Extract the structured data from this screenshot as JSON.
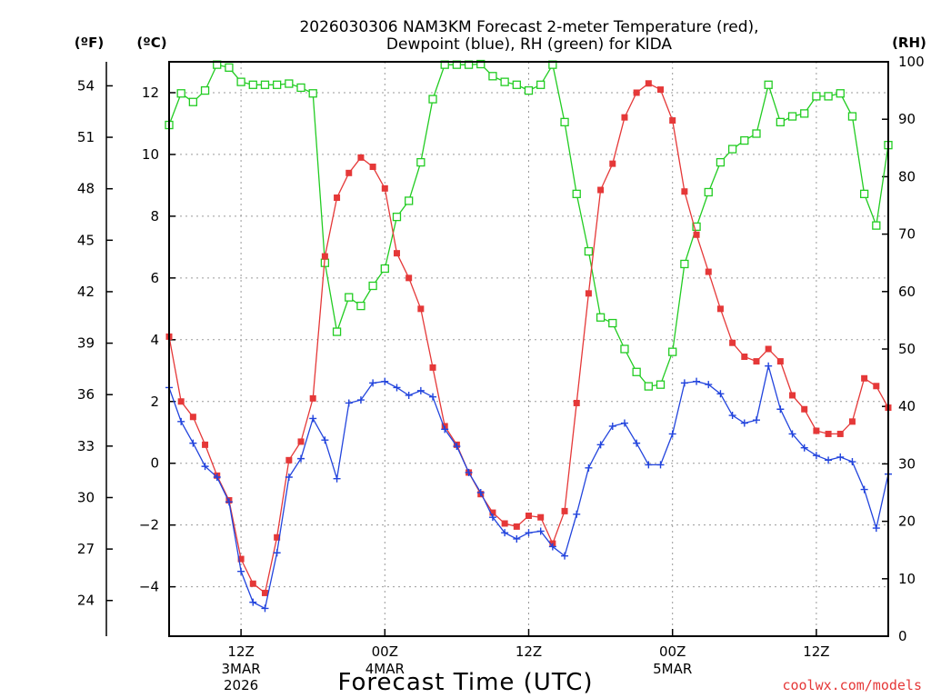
{
  "chart_data": {
    "type": "line",
    "title": [
      "2026030306 NAM3KM Forecast 2-meter Temperature (red),",
      "Dewpoint (blue), RH (green) for KIDA"
    ],
    "xlabel": "Forecast Time (UTC)",
    "credit": "coolwx.com/models",
    "left_axis_f": {
      "label": "(ºF)",
      "ticks": [
        "24",
        "27",
        "30",
        "33",
        "36",
        "39",
        "42",
        "45",
        "48",
        "51",
        "54"
      ],
      "tick_values_c": [
        -4.444,
        -2.778,
        -1.111,
        0.556,
        2.222,
        3.889,
        5.556,
        7.222,
        8.889,
        10.556,
        12.222
      ]
    },
    "left_axis_c": {
      "label": "(ºC)",
      "ticks": [
        "-4",
        "-2",
        "0",
        "2",
        "4",
        "6",
        "8",
        "10",
        "12"
      ],
      "tick_values": [
        -4,
        -2,
        0,
        2,
        4,
        6,
        8,
        10,
        12
      ],
      "ylim": [
        -5.6,
        13.0
      ]
    },
    "right_axis_rh": {
      "label": "(RH)",
      "ticks": [
        "0",
        "10",
        "20",
        "30",
        "40",
        "50",
        "60",
        "70",
        "80",
        "90",
        "100"
      ],
      "tick_values": [
        0,
        10,
        20,
        30,
        40,
        50,
        60,
        70,
        80,
        90,
        100
      ],
      "ylim": [
        0,
        100
      ]
    },
    "x_axis": {
      "xlim_hours": [
        0,
        60
      ],
      "ticks": [
        {
          "hour": 6,
          "label": "12Z",
          "sub": [
            "3MAR",
            "2026"
          ]
        },
        {
          "hour": 18,
          "label": "00Z",
          "sub": [
            "4MAR"
          ]
        },
        {
          "hour": 30,
          "label": "12Z",
          "sub": []
        },
        {
          "hour": 42,
          "label": "00Z",
          "sub": [
            "5MAR"
          ]
        },
        {
          "hour": 54,
          "label": "12Z",
          "sub": []
        }
      ]
    },
    "grid": true,
    "series": [
      {
        "name": "Temperature",
        "units": "C",
        "color": "#e53838",
        "marker": "filled-square",
        "axis": "celsius",
        "x": [
          0,
          1,
          2,
          3,
          4,
          5,
          6,
          7,
          8,
          9,
          10,
          11,
          12,
          13,
          14,
          15,
          16,
          17,
          18,
          19,
          20,
          21,
          22,
          23,
          24,
          25,
          26,
          27,
          28,
          29,
          30,
          31,
          32,
          33,
          34,
          35,
          36,
          37,
          38,
          39,
          40,
          41,
          42,
          43,
          44,
          45,
          46,
          47,
          48,
          49,
          50,
          51,
          52,
          53,
          54,
          55,
          56,
          57,
          58,
          59,
          60
        ],
        "values": [
          4.1,
          2.0,
          1.5,
          0.6,
          -0.4,
          -1.2,
          -3.1,
          -3.9,
          -4.2,
          -2.4,
          0.1,
          0.7,
          2.1,
          6.7,
          8.6,
          9.4,
          9.9,
          9.6,
          8.9,
          6.8,
          6.0,
          5.0,
          3.1,
          1.2,
          0.6,
          -0.3,
          -1.0,
          -1.6,
          -1.95,
          -2.05,
          -1.7,
          -1.75,
          -2.6,
          -1.55,
          1.95,
          5.5,
          8.85,
          9.7,
          11.2,
          12.0,
          12.3,
          12.1,
          11.1,
          8.8,
          7.4,
          6.2,
          5.0,
          3.9,
          3.45,
          3.3,
          3.7,
          3.3,
          2.2,
          1.75,
          1.05,
          0.95,
          0.95,
          1.35,
          2.75,
          2.5,
          1.8
        ]
      },
      {
        "name": "Dewpoint",
        "units": "C",
        "color": "#2244dd",
        "marker": "plus",
        "axis": "celsius",
        "x": [
          0,
          1,
          2,
          3,
          4,
          5,
          6,
          7,
          8,
          9,
          10,
          11,
          12,
          13,
          14,
          15,
          16,
          17,
          18,
          19,
          20,
          21,
          22,
          23,
          24,
          25,
          26,
          27,
          28,
          29,
          30,
          31,
          32,
          33,
          34,
          35,
          36,
          37,
          38,
          39,
          40,
          41,
          42,
          43,
          44,
          45,
          46,
          47,
          48,
          49,
          50,
          51,
          52,
          53,
          54,
          55,
          56,
          57,
          58,
          59,
          60
        ],
        "values": [
          2.45,
          1.35,
          0.65,
          -0.1,
          -0.45,
          -1.25,
          -3.5,
          -4.5,
          -4.7,
          -2.9,
          -0.45,
          0.15,
          1.45,
          0.75,
          -0.5,
          1.95,
          2.05,
          2.6,
          2.65,
          2.45,
          2.2,
          2.35,
          2.15,
          1.1,
          0.55,
          -0.3,
          -0.95,
          -1.75,
          -2.25,
          -2.45,
          -2.25,
          -2.2,
          -2.7,
          -3.0,
          -1.65,
          -0.15,
          0.6,
          1.2,
          1.3,
          0.65,
          -0.05,
          -0.05,
          0.95,
          2.6,
          2.65,
          2.55,
          2.25,
          1.55,
          1.3,
          1.4,
          3.15,
          1.75,
          0.95,
          0.5,
          0.25,
          0.1,
          0.2,
          0.05,
          -0.85,
          -2.1,
          -0.35
        ]
      },
      {
        "name": "Relative Humidity",
        "units": "%",
        "color": "#22cc22",
        "marker": "open-square",
        "axis": "rh",
        "x": [
          0,
          1,
          2,
          3,
          4,
          5,
          6,
          7,
          8,
          9,
          10,
          11,
          12,
          13,
          14,
          15,
          16,
          17,
          18,
          19,
          20,
          21,
          22,
          23,
          24,
          25,
          26,
          27,
          28,
          29,
          30,
          31,
          32,
          33,
          34,
          35,
          36,
          37,
          38,
          39,
          40,
          41,
          42,
          43,
          44,
          45,
          46,
          47,
          48,
          49,
          50,
          51,
          52,
          53,
          54,
          55,
          56,
          57,
          58,
          59,
          60
        ],
        "values": [
          89,
          94.5,
          93,
          95,
          99.5,
          99,
          96.5,
          96,
          96,
          96,
          96.2,
          95.5,
          94.5,
          65,
          53,
          59,
          57.5,
          61,
          64,
          73,
          75.8,
          82.5,
          93.5,
          99.5,
          99.5,
          99.5,
          99.6,
          97.5,
          96.5,
          96,
          95,
          96,
          99.5,
          89.5,
          77,
          67,
          55.5,
          54.5,
          50,
          46,
          43.5,
          43.8,
          49.5,
          64.8,
          71.3,
          77.3,
          82.5,
          84.8,
          86.3,
          87.5,
          96,
          89.5,
          90.5,
          91,
          94,
          94,
          94.5,
          90.5,
          77,
          71.5,
          85.5
        ]
      }
    ]
  }
}
